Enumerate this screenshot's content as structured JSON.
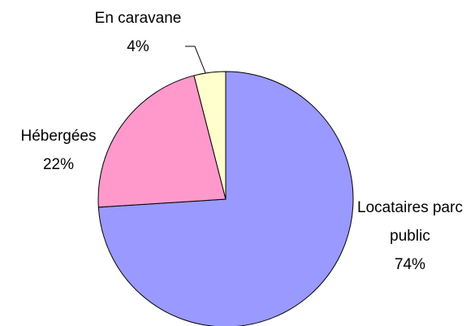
{
  "chart_data": {
    "type": "pie",
    "categories": [
      "Locataires parc public",
      "Hébergées",
      "En caravane"
    ],
    "values": [
      74,
      22,
      4
    ],
    "value_labels": [
      "74%",
      "22%",
      "4%"
    ],
    "colors": [
      "#9999ff",
      "#ff99cc",
      "#ffffcc"
    ]
  }
}
